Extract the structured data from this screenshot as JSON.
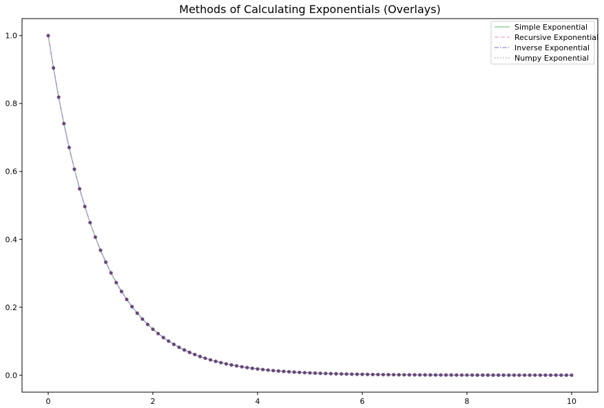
{
  "chart_data": {
    "type": "line",
    "title": "Methods of Calculating Exponentials (Overlays)",
    "xlabel": "",
    "ylabel": "",
    "xlim": [
      -0.5,
      10.5
    ],
    "ylim": [
      -0.05,
      1.05
    ],
    "x_ticks": [
      "0",
      "2",
      "4",
      "6",
      "8",
      "10"
    ],
    "y_ticks": [
      "0.0",
      "0.2",
      "0.4",
      "0.6",
      "0.8",
      "1.0"
    ],
    "grid": false,
    "legend_position": "top-right",
    "function": "exp(-x)",
    "x_start": 0,
    "x_end": 10,
    "num_points": 101,
    "marker_color": "#553366",
    "series": [
      {
        "name": "Simple Exponential",
        "color": "#7fc97f",
        "dash": "solid"
      },
      {
        "name": "Recursive Exponential",
        "color": "#f0a0b8",
        "dash": "dashed"
      },
      {
        "name": "Inverse Exponential",
        "color": "#8a8ae0",
        "dash": "dashdot"
      },
      {
        "name": "Numpy Exponential",
        "color": "#a8a8a8",
        "dash": "dotted"
      }
    ]
  }
}
